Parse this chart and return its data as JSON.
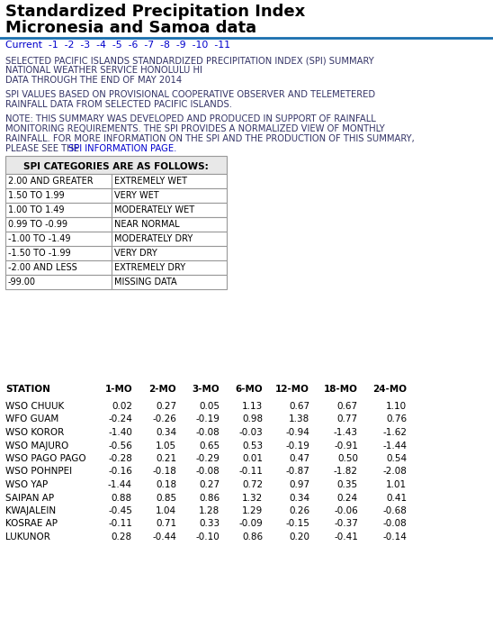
{
  "title_line1": "Standardized Precipitation Index",
  "title_line2": "Micronesia and Samoa data",
  "nav_text": "Current  -1  -2  -3  -4  -5  -6  -7  -8  -9  -10  -11",
  "title_color": "#000000",
  "nav_color": "#0000cc",
  "line_color": "#1a6faf",
  "body_text_color": "#333366",
  "desc1": "SELECTED PACIFIC ISLANDS STANDARDIZED PRECIPITATION INDEX (SPI) SUMMARY",
  "desc2": "NATIONAL WEATHER SERVICE HONOLULU HI",
  "desc3": "DATA THROUGH THE END OF MAY 2014",
  "desc4a": "SPI VALUES BASED ON PROVISIONAL COOPERATIVE OBSERVER AND TELEMETERED",
  "desc4b": "RAINFALL DATA FROM SELECTED PACIFIC ISLANDS.",
  "note1": "NOTE: THIS SUMMARY WAS DEVELOPED AND PRODUCED IN SUPPORT OF RAINFALL",
  "note2": "MONITORING REQUIREMENTS. THE SPI PROVIDES A NORMALIZED VIEW OF MONTHLY",
  "note3": "RAINFALL. FOR MORE INFORMATION ON THE SPI AND THE PRODUCTION OF THIS SUMMARY,",
  "note4a": "PLEASE SEE THE ",
  "note4b": "SPI INFORMATION PAGE.",
  "spi_table_header": "SPI CATEGORIES ARE AS FOLLOWS:",
  "spi_categories": [
    [
      "2.00 AND GREATER",
      "EXTREMELY WET"
    ],
    [
      "1.50 TO 1.99",
      "VERY WET"
    ],
    [
      "1.00 TO 1.49",
      "MODERATELY WET"
    ],
    [
      "0.99 TO -0.99",
      "NEAR NORMAL"
    ],
    [
      "-1.00 TO -1.49",
      "MODERATELY DRY"
    ],
    [
      "-1.50 TO -1.99",
      "VERY DRY"
    ],
    [
      "-2.00 AND LESS",
      "EXTREMELY DRY"
    ],
    [
      "-99.00",
      "MISSING DATA"
    ]
  ],
  "data_header": [
    "STATION",
    "1-MO",
    "2-MO",
    "3-MO",
    "6-MO",
    "12-MO",
    "18-MO",
    "24-MO"
  ],
  "stations": [
    [
      "WSO CHUUK",
      "0.02",
      "0.27",
      "0.05",
      "1.13",
      "0.67",
      "0.67",
      "1.10"
    ],
    [
      "WFO GUAM",
      "-0.24",
      "-0.26",
      "-0.19",
      "0.98",
      "1.38",
      "0.77",
      "0.76"
    ],
    [
      "WSO KOROR",
      "-1.40",
      "0.34",
      "-0.08",
      "-0.03",
      "-0.94",
      "-1.43",
      "-1.62"
    ],
    [
      "WSO MAJURO",
      "-0.56",
      "1.05",
      "0.65",
      "0.53",
      "-0.19",
      "-0.91",
      "-1.44"
    ],
    [
      "WSO PAGO PAGO",
      "-0.28",
      "0.21",
      "-0.29",
      "0.01",
      "0.47",
      "0.50",
      "0.54"
    ],
    [
      "WSO POHNPEI",
      "-0.16",
      "-0.18",
      "-0.08",
      "-0.11",
      "-0.87",
      "-1.82",
      "-2.08"
    ],
    [
      "WSO YAP",
      "-1.44",
      "0.18",
      "0.27",
      "0.72",
      "0.97",
      "0.35",
      "1.01"
    ],
    [
      "SAIPAN AP",
      "0.88",
      "0.85",
      "0.86",
      "1.32",
      "0.34",
      "0.24",
      "0.41"
    ],
    [
      "KWAJALEIN",
      "-0.45",
      "1.04",
      "1.28",
      "1.29",
      "0.26",
      "-0.06",
      "-0.68"
    ],
    [
      "KOSRAE AP",
      "-0.11",
      "0.71",
      "0.33",
      "-0.09",
      "-0.15",
      "-0.37",
      "-0.08"
    ],
    [
      "LUKUNOR",
      "0.28",
      "-0.44",
      "-0.10",
      "0.86",
      "0.20",
      "-0.41",
      "-0.14"
    ]
  ],
  "bg_color": "#ffffff",
  "table_border_color": "#999999",
  "figsize": [
    5.48,
    6.87
  ],
  "dpi": 100
}
